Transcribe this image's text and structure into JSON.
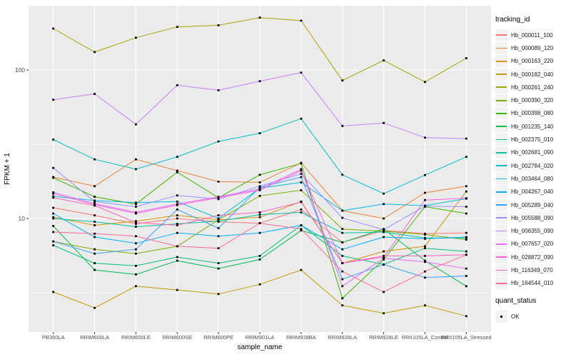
{
  "figure": {
    "panel_bg": "#EBEBEB",
    "grid_color": "#FFFFFF",
    "tick_color": "#333333",
    "axis_text_color": "#4D4D4D",
    "point_color": "#000000"
  },
  "axes": {
    "x_label": "sample_name",
    "y_label": "FPKM + 1",
    "y_ticks": [
      {
        "label": "100",
        "value": 100
      },
      {
        "label": "10",
        "value": 10
      }
    ],
    "y_minor_ticks": [
      3.162,
      31.623
    ]
  },
  "legend": {
    "tracking_title": "tracking_id",
    "quant_title": "quant_status",
    "quant_items": [
      {
        "label": "OK"
      }
    ]
  },
  "chart_data": {
    "type": "line",
    "x_scale": "categorical",
    "y_scale": "log10",
    "ylim": [
      1.7,
      280
    ],
    "legend_position": "right",
    "marker": "black-square",
    "xlabel": "sample_name",
    "ylabel": "FPKM + 1",
    "categories": [
      "PB350LA",
      "RRIM600LA",
      "RRIM600LE",
      "RRIM600SE",
      "RRIM600PE",
      "RRIM901LA",
      "RRIM928BA",
      "RRIM928LA",
      "RRIM928LE",
      "RRII105LA_Control",
      "RRII105LA_Stressed"
    ],
    "series": [
      {
        "name": "Hb_000011_100",
        "color": "#F8766D",
        "values": [
          11.8,
          10.5,
          9.2,
          10.0,
          9.5,
          9.3,
          11.5,
          6.9,
          8.3,
          7.9,
          8.0
        ]
      },
      {
        "name": "Hb_000089_120",
        "color": "#EA8331",
        "values": [
          19.0,
          16.5,
          25.0,
          21.0,
          17.7,
          17.5,
          23.7,
          11.3,
          10.0,
          14.9,
          16.5
        ]
      },
      {
        "name": "Hb_000163_220",
        "color": "#D89000",
        "values": [
          10.2,
          9.0,
          9.6,
          10.5,
          9.8,
          10.2,
          13.0,
          5.0,
          6.0,
          6.5,
          15.2
        ]
      },
      {
        "name": "Hb_000182_040",
        "color": "#C09B00",
        "values": [
          3.2,
          2.5,
          3.5,
          3.3,
          3.1,
          3.6,
          4.5,
          2.6,
          2.3,
          2.6,
          2.2
        ]
      },
      {
        "name": "Hb_000261_240",
        "color": "#A3A500",
        "values": [
          190,
          132,
          165,
          195,
          200,
          225,
          215,
          85,
          116,
          83,
          120
        ]
      },
      {
        "name": "Hb_000390_320",
        "color": "#7CAE00",
        "values": [
          7.0,
          6.2,
          5.8,
          6.5,
          9.8,
          14.2,
          15.5,
          8.5,
          8.2,
          7.8,
          7.2
        ]
      },
      {
        "name": "Hb_000398_080",
        "color": "#39B600",
        "values": [
          18.8,
          14.0,
          12.5,
          20.5,
          13.8,
          19.7,
          23.5,
          2.9,
          5.3,
          12.0,
          10.8
        ]
      },
      {
        "name": "Hb_001235_140",
        "color": "#00BB4E",
        "values": [
          8.9,
          4.5,
          4.2,
          5.2,
          4.6,
          5.3,
          8.3,
          6.9,
          8.5,
          5.2,
          3.5
        ]
      },
      {
        "name": "Hb_002375_010",
        "color": "#00BF7D",
        "values": [
          6.6,
          5.0,
          4.8,
          5.5,
          5.0,
          5.6,
          9.0,
          5.6,
          4.9,
          6.3,
          6.0
        ]
      },
      {
        "name": "Hb_002681_090",
        "color": "#00C1A3",
        "values": [
          10.0,
          9.5,
          8.8,
          9.2,
          9.6,
          10.6,
          11.0,
          8.0,
          8.1,
          7.4,
          7.4
        ]
      },
      {
        "name": "Hb_002784_020",
        "color": "#00BFC4",
        "values": [
          34,
          25,
          21.5,
          26,
          33,
          37.5,
          47,
          19.7,
          14.7,
          19.6,
          26
        ]
      },
      {
        "name": "Hb_003464_080",
        "color": "#00BAE0",
        "values": [
          14.1,
          13.2,
          12.8,
          13.0,
          10.0,
          16.0,
          17.5,
          11.3,
          12.5,
          12.2,
          13.6
        ]
      },
      {
        "name": "Hb_004267_040",
        "color": "#00B0F6",
        "values": [
          10.8,
          7.5,
          6.8,
          8.0,
          7.6,
          8.0,
          9.0,
          6.2,
          7.5,
          7.3,
          7.5
        ]
      },
      {
        "name": "Hb_005289_040",
        "color": "#35A2FF",
        "values": [
          7.0,
          5.8,
          6.2,
          11.5,
          8.6,
          16.2,
          19.0,
          3.9,
          4.9,
          4.0,
          4.1
        ]
      },
      {
        "name": "Hb_005588_090",
        "color": "#9590FF",
        "values": [
          21.9,
          13.0,
          12.0,
          14.3,
          13.5,
          16.5,
          20.0,
          10.1,
          8.4,
          12.1,
          12.0
        ]
      },
      {
        "name": "Hb_006355_090",
        "color": "#C77CFF",
        "values": [
          63,
          69,
          43,
          79,
          73,
          84,
          96,
          42,
          44,
          35,
          34.5
        ]
      },
      {
        "name": "Hb_007657_020",
        "color": "#E76BF3",
        "values": [
          15.0,
          12.6,
          11.0,
          12.5,
          14.0,
          15.8,
          21.5,
          3.5,
          5.4,
          5.1,
          4.6
        ]
      },
      {
        "name": "Hb_028872_090",
        "color": "#FA62DB",
        "values": [
          14.7,
          12.4,
          10.8,
          12.3,
          13.8,
          15.5,
          21.0,
          5.0,
          5.5,
          13.3,
          13.7
        ]
      },
      {
        "name": "Hb_116349_070",
        "color": "#FF62BC",
        "values": [
          13.8,
          12.2,
          9.4,
          9.0,
          10.5,
          11.0,
          12.9,
          5.0,
          5.6,
          5.6,
          5.7
        ]
      },
      {
        "name": "Hb_164544_010",
        "color": "#FF6A98",
        "values": [
          8.1,
          7.9,
          7.6,
          6.5,
          6.3,
          9.3,
          8.5,
          4.4,
          3.2,
          4.4,
          5.7
        ]
      }
    ]
  }
}
